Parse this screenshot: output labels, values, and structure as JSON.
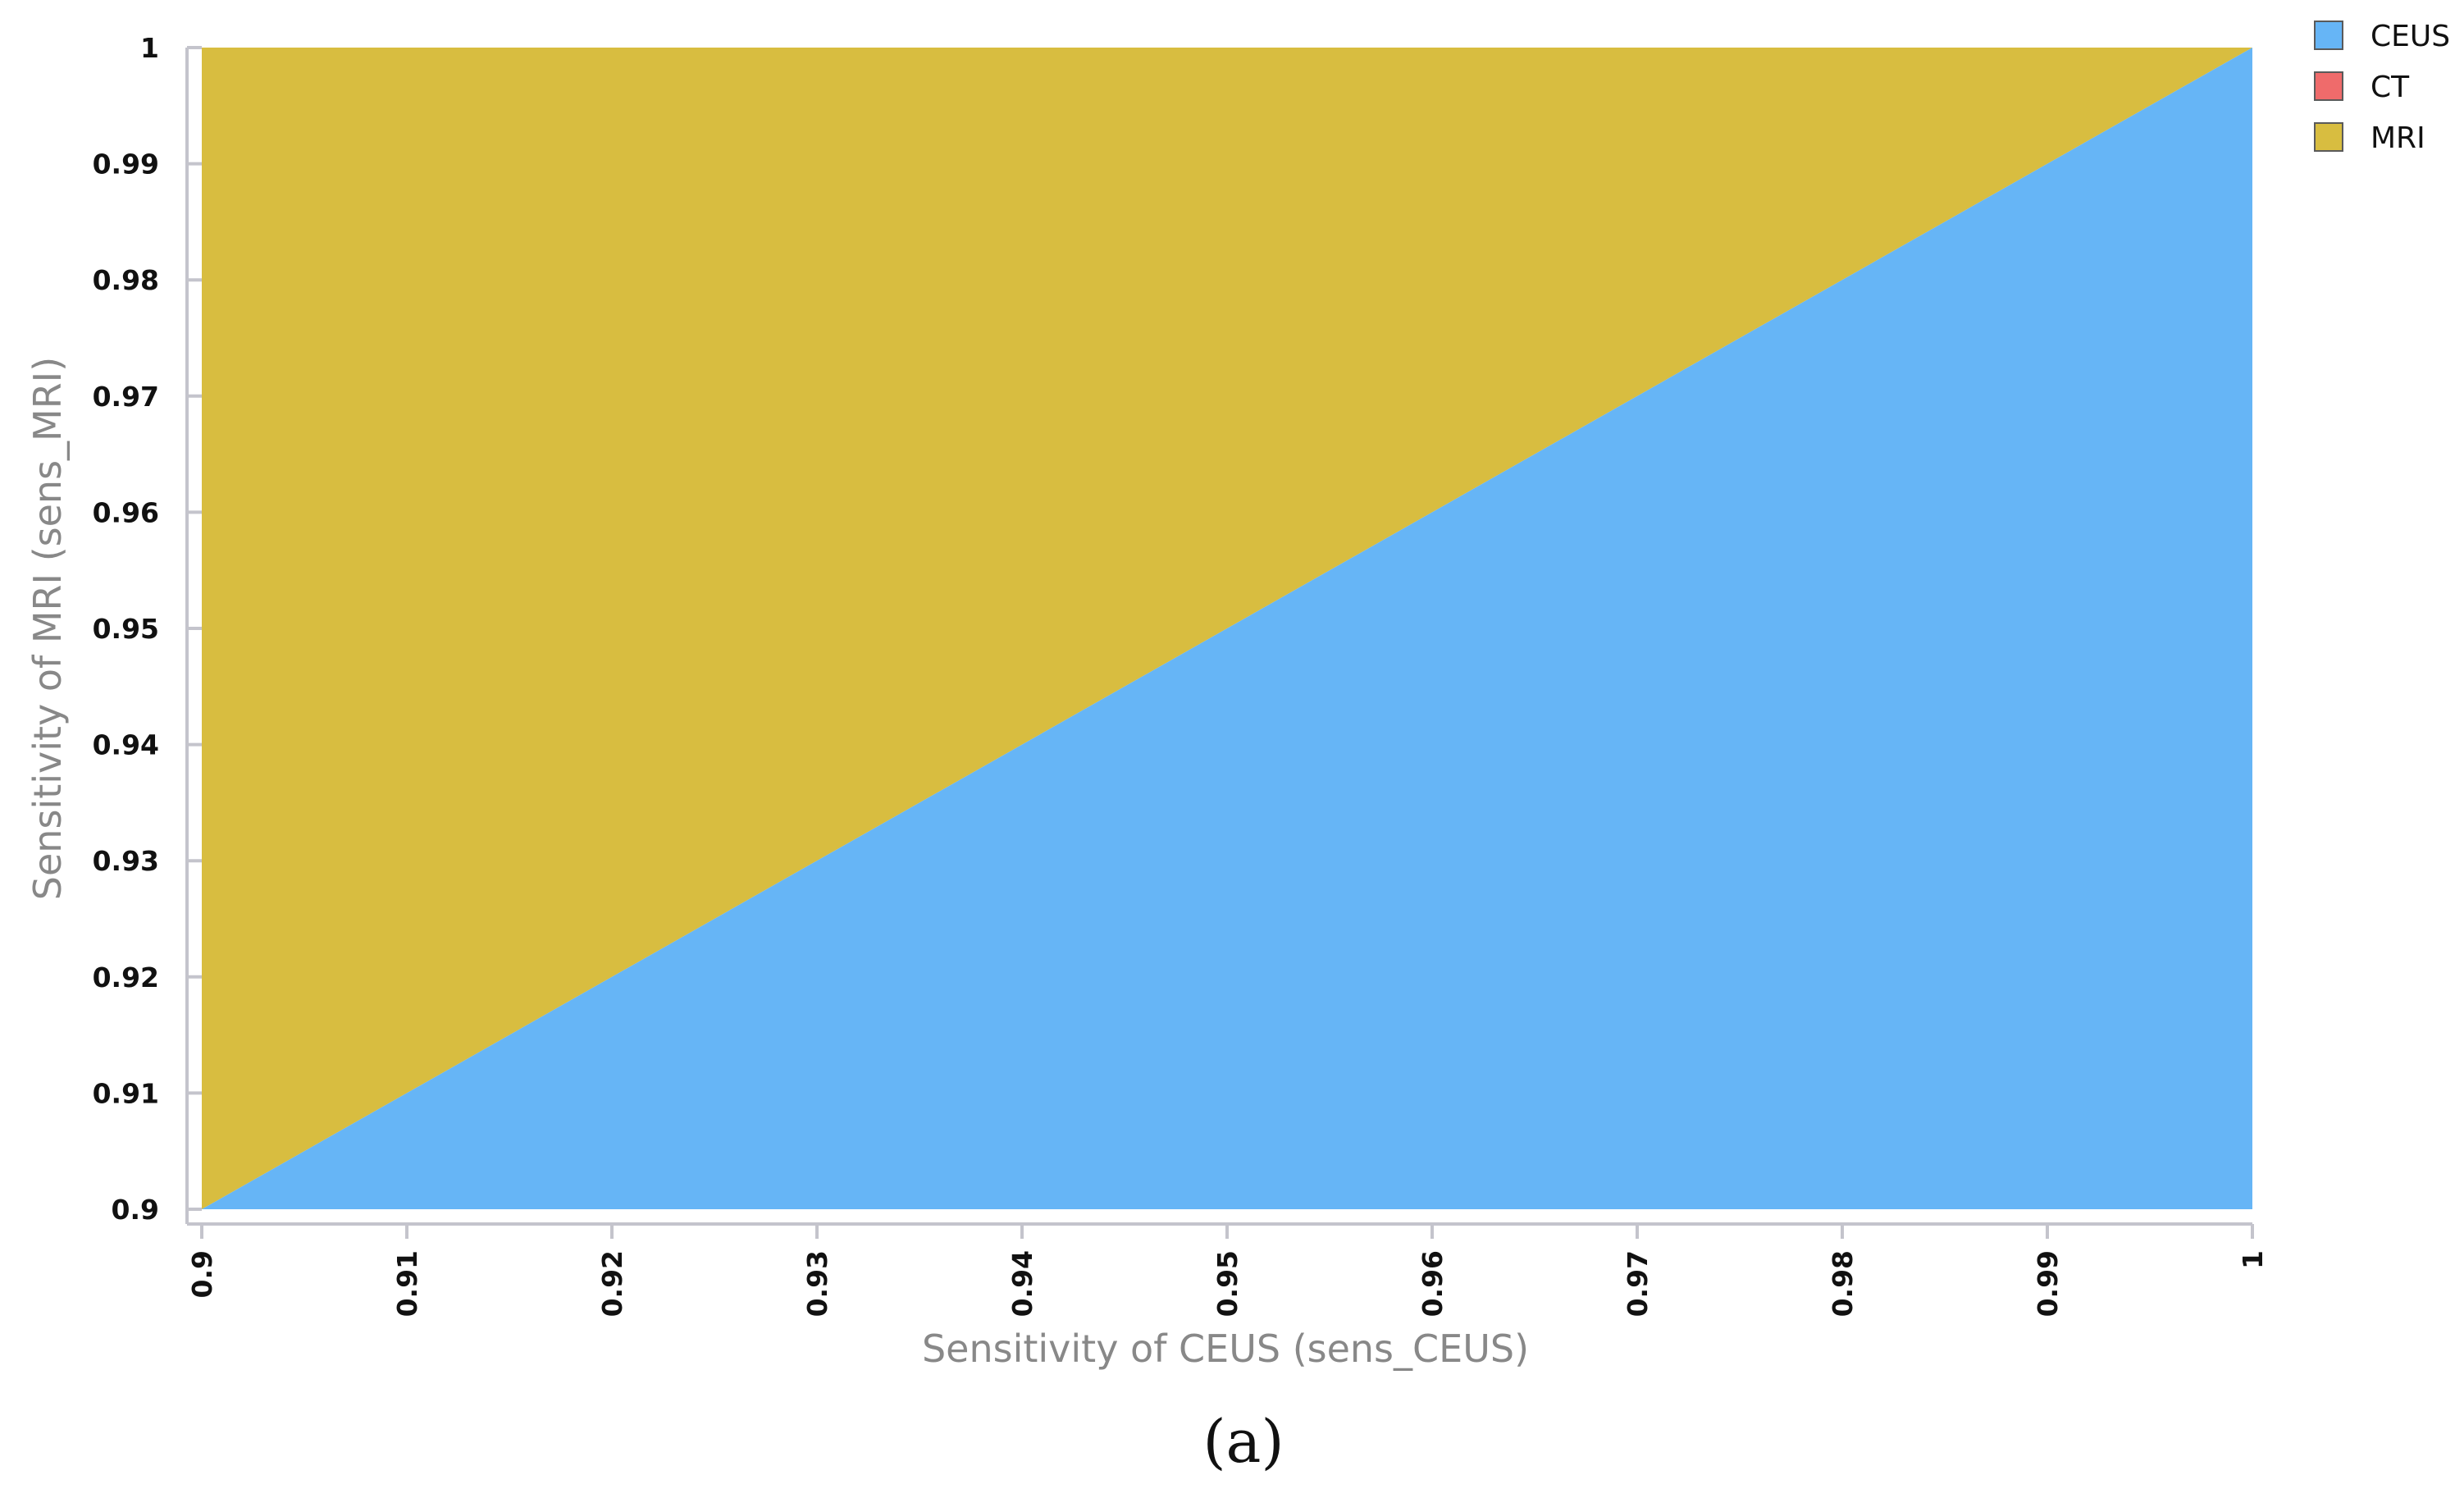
{
  "chart_data": {
    "type": "area",
    "title": "",
    "xlabel": "Sensitivity of CEUS (sens_CEUS)",
    "ylabel": "Sensitivity of MRI (sens_MRI)",
    "xlim": [
      0.9,
      1.0
    ],
    "ylim": [
      0.9,
      1.0
    ],
    "x_ticks": [
      "0.9",
      "0.91",
      "0.92",
      "0.93",
      "0.94",
      "0.95",
      "0.96",
      "0.97",
      "0.98",
      "0.99",
      "1"
    ],
    "y_ticks": [
      "0.9",
      "0.91",
      "0.92",
      "0.93",
      "0.94",
      "0.95",
      "0.96",
      "0.97",
      "0.98",
      "0.99",
      "1"
    ],
    "grid": false,
    "legend_position": "top-right",
    "series": [
      {
        "name": "CEUS",
        "color": "#66b5f6",
        "region": "below boundary line",
        "boundary": {
          "x": [
            0.9,
            1.0
          ],
          "y": [
            0.9,
            1.0
          ]
        }
      },
      {
        "name": "CT",
        "color": "#ef6b6b",
        "region": "none visible"
      },
      {
        "name": "MRI",
        "color": "#d8bd40",
        "region": "above boundary line",
        "boundary": {
          "x": [
            0.9,
            1.0
          ],
          "y": [
            0.9,
            1.0
          ]
        }
      }
    ]
  },
  "caption": "(a)"
}
